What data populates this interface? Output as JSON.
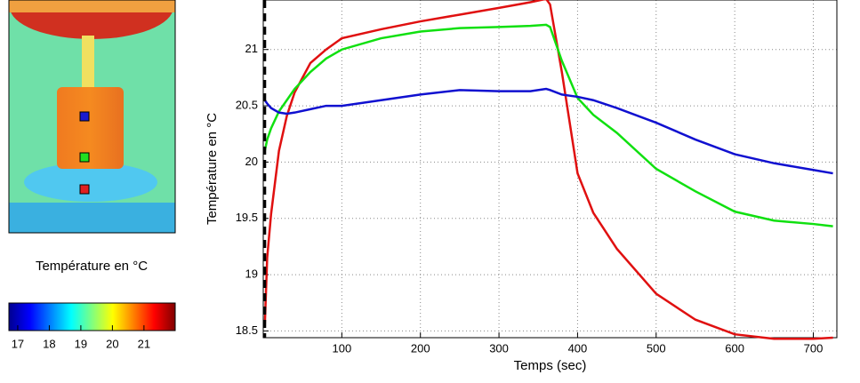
{
  "chart_data": {
    "type": "line",
    "x_label": "Temps (sec)",
    "y_label": "Température en °C",
    "x": [
      2,
      5,
      10,
      20,
      30,
      40,
      60,
      80,
      100,
      150,
      200,
      250,
      300,
      340,
      360,
      365,
      380,
      400,
      420,
      450,
      500,
      550,
      600,
      650,
      700,
      725
    ],
    "series": [
      {
        "color": "#e01010",
        "values": [
          18.55,
          19.15,
          19.54,
          20.1,
          20.41,
          20.62,
          20.88,
          21.0,
          21.1,
          21.18,
          21.25,
          21.31,
          21.37,
          21.42,
          21.45,
          21.4,
          20.8,
          19.9,
          19.55,
          19.23,
          18.83,
          18.6,
          18.47,
          18.43,
          18.43,
          18.44
        ]
      },
      {
        "color": "#10e010",
        "values": [
          20.1,
          20.2,
          20.3,
          20.45,
          20.55,
          20.65,
          20.8,
          20.92,
          21.0,
          21.1,
          21.16,
          21.19,
          21.2,
          21.21,
          21.22,
          21.2,
          20.9,
          20.57,
          20.42,
          20.26,
          19.94,
          19.74,
          19.56,
          19.48,
          19.45,
          19.43
        ]
      },
      {
        "color": "#1010d0",
        "values": [
          20.55,
          20.52,
          20.48,
          20.44,
          20.43,
          20.44,
          20.47,
          20.5,
          20.5,
          20.55,
          20.6,
          20.64,
          20.63,
          20.63,
          20.65,
          20.64,
          20.6,
          20.58,
          20.55,
          20.48,
          20.35,
          20.2,
          20.07,
          19.99,
          19.93,
          19.9
        ]
      }
    ],
    "event_x": 2,
    "xlim": [
      0,
      730
    ],
    "ylim": [
      18.44,
      21.44
    ],
    "xticks": [
      100,
      200,
      300,
      400,
      500,
      600,
      700
    ],
    "yticks": [
      18.5,
      19,
      19.5,
      20,
      20.5,
      21
    ],
    "grid": true
  },
  "thermal_image": {
    "caption": "Température en °C",
    "colorbar": {
      "lim": [
        16.72,
        21.99
      ],
      "ticks": [
        17,
        18,
        19,
        20,
        21
      ]
    }
  }
}
